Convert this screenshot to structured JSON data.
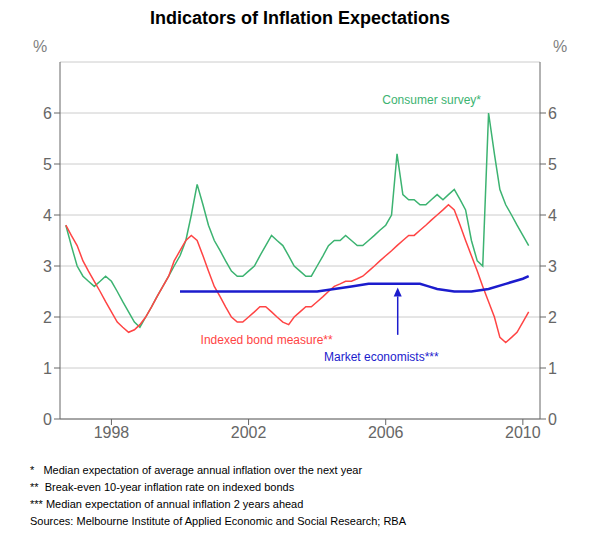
{
  "chart_data": {
    "type": "line",
    "title": "Indicators of Inflation Expectations",
    "ylabel": "%",
    "y2label": "%",
    "xlim": [
      1996.5,
      2010.5
    ],
    "xticks": [
      1998,
      2002,
      2006,
      2010
    ],
    "ylim": [
      0,
      7
    ],
    "yticks": [
      0,
      1,
      2,
      3,
      4,
      5,
      6
    ],
    "y2lim": [
      0,
      7
    ],
    "y2ticks": [
      0,
      1,
      2,
      3,
      4,
      5,
      6
    ],
    "grid": "y",
    "series": [
      {
        "color": "#3cb371",
        "x": [
          1996.67,
          1996.83,
          1997.0,
          1997.17,
          1997.33,
          1997.5,
          1997.67,
          1997.83,
          1998.0,
          1998.17,
          1998.33,
          1998.5,
          1998.67,
          1998.83,
          1999.0,
          1999.17,
          1999.33,
          1999.5,
          1999.67,
          1999.83,
          2000.0,
          2000.17,
          2000.33,
          2000.5,
          2000.67,
          2000.83,
          2001.0,
          2001.17,
          2001.33,
          2001.5,
          2001.67,
          2001.83,
          2002.0,
          2002.17,
          2002.33,
          2002.5,
          2002.67,
          2002.83,
          2003.0,
          2003.17,
          2003.33,
          2003.5,
          2003.67,
          2003.83,
          2004.0,
          2004.17,
          2004.33,
          2004.5,
          2004.67,
          2004.83,
          2005.0,
          2005.17,
          2005.33,
          2005.5,
          2005.67,
          2005.83,
          2006.0,
          2006.17,
          2006.33,
          2006.5,
          2006.67,
          2006.83,
          2007.0,
          2007.17,
          2007.33,
          2007.5,
          2007.67,
          2007.83,
          2008.0,
          2008.17,
          2008.33,
          2008.5,
          2008.67,
          2008.83,
          2009.0,
          2009.17,
          2009.33,
          2009.5,
          2009.67,
          2009.83,
          2010.0,
          2010.17
        ],
        "values": [
          3.8,
          3.4,
          3.0,
          2.8,
          2.7,
          2.6,
          2.7,
          2.8,
          2.7,
          2.5,
          2.3,
          2.1,
          1.9,
          1.8,
          2.0,
          2.2,
          2.4,
          2.6,
          2.8,
          3.0,
          3.2,
          3.5,
          4.0,
          4.6,
          4.2,
          3.8,
          3.5,
          3.3,
          3.1,
          2.9,
          2.8,
          2.8,
          2.9,
          3.0,
          3.2,
          3.4,
          3.6,
          3.5,
          3.4,
          3.2,
          3.0,
          2.9,
          2.8,
          2.8,
          3.0,
          3.2,
          3.4,
          3.5,
          3.5,
          3.6,
          3.5,
          3.4,
          3.4,
          3.5,
          3.6,
          3.7,
          3.8,
          4.0,
          5.2,
          4.4,
          4.3,
          4.3,
          4.2,
          4.2,
          4.3,
          4.4,
          4.3,
          4.4,
          4.5,
          4.3,
          4.1,
          3.5,
          3.1,
          3.0,
          6.0,
          5.2,
          4.5,
          4.2,
          4.0,
          3.8,
          3.6,
          3.4
        ]
      },
      {
        "color": "#ff4444",
        "x": [
          1996.67,
          1996.83,
          1997.0,
          1997.17,
          1997.33,
          1997.5,
          1997.67,
          1997.83,
          1998.0,
          1998.17,
          1998.33,
          1998.5,
          1998.67,
          1998.83,
          1999.0,
          1999.17,
          1999.33,
          1999.5,
          1999.67,
          1999.83,
          2000.0,
          2000.17,
          2000.33,
          2000.5,
          2000.67,
          2000.83,
          2001.0,
          2001.17,
          2001.33,
          2001.5,
          2001.67,
          2001.83,
          2002.0,
          2002.17,
          2002.33,
          2002.5,
          2002.67,
          2002.83,
          2003.0,
          2003.17,
          2003.33,
          2003.5,
          2003.67,
          2003.83,
          2004.0,
          2004.17,
          2004.33,
          2004.5,
          2004.67,
          2004.83,
          2005.0,
          2005.17,
          2005.33,
          2005.5,
          2005.67,
          2005.83,
          2006.0,
          2006.17,
          2006.33,
          2006.5,
          2006.67,
          2006.83,
          2007.0,
          2007.17,
          2007.33,
          2007.5,
          2007.67,
          2007.83,
          2008.0,
          2008.17,
          2008.33,
          2008.5,
          2008.67,
          2008.83,
          2009.0,
          2009.17,
          2009.33,
          2009.5,
          2009.67,
          2009.83,
          2010.0,
          2010.17
        ],
        "values": [
          3.8,
          3.6,
          3.4,
          3.1,
          2.9,
          2.7,
          2.5,
          2.3,
          2.1,
          1.9,
          1.8,
          1.7,
          1.75,
          1.85,
          2.0,
          2.2,
          2.4,
          2.6,
          2.8,
          3.1,
          3.3,
          3.5,
          3.6,
          3.5,
          3.2,
          2.9,
          2.6,
          2.4,
          2.2,
          2.0,
          1.9,
          1.9,
          2.0,
          2.1,
          2.2,
          2.2,
          2.1,
          2.0,
          1.9,
          1.85,
          2.0,
          2.1,
          2.2,
          2.2,
          2.3,
          2.4,
          2.5,
          2.6,
          2.65,
          2.7,
          2.7,
          2.75,
          2.8,
          2.9,
          3.0,
          3.1,
          3.2,
          3.3,
          3.4,
          3.5,
          3.6,
          3.6,
          3.7,
          3.8,
          3.9,
          4.0,
          4.1,
          4.2,
          4.1,
          3.8,
          3.5,
          3.2,
          2.9,
          2.6,
          2.3,
          2.0,
          1.6,
          1.5,
          1.6,
          1.7,
          1.9,
          2.1
        ]
      },
      {
        "color": "#1c1ccd",
        "x": [
          2000.0,
          2000.5,
          2001.0,
          2001.5,
          2002.0,
          2002.5,
          2003.0,
          2003.5,
          2004.0,
          2004.5,
          2005.0,
          2005.5,
          2006.0,
          2006.5,
          2007.0,
          2007.25,
          2007.5,
          2008.0,
          2008.5,
          2009.0,
          2009.5,
          2010.0,
          2010.17
        ],
        "values": [
          2.5,
          2.5,
          2.5,
          2.5,
          2.5,
          2.5,
          2.5,
          2.5,
          2.5,
          2.55,
          2.6,
          2.65,
          2.65,
          2.65,
          2.65,
          2.6,
          2.55,
          2.5,
          2.5,
          2.55,
          2.65,
          2.75,
          2.8
        ]
      }
    ],
    "annotations": [
      {
        "text": "Consumer survey*",
        "x": 2005.9,
        "y": 6.25,
        "color": "#3cb371"
      },
      {
        "text": "Indexed bond measure**",
        "x": 2000.6,
        "y": 1.55,
        "color": "#ff4444"
      },
      {
        "text": "Market economists***",
        "x": 2004.2,
        "y": 1.22,
        "color": "#1c1ccd"
      }
    ],
    "arrows": [
      {
        "x": 2006.35,
        "y_start": 1.65,
        "y_end": 2.58,
        "color": "#1c1ccd"
      }
    ],
    "footnotes": [
      "*   Median expectation of average annual inflation over the next year",
      "**  Break-even 10-year inflation rate on indexed bonds",
      "*** Median expectation of annual inflation 2 years ahead",
      "Sources: Melbourne Institute of Applied Economic and Social Research; RBA"
    ]
  }
}
